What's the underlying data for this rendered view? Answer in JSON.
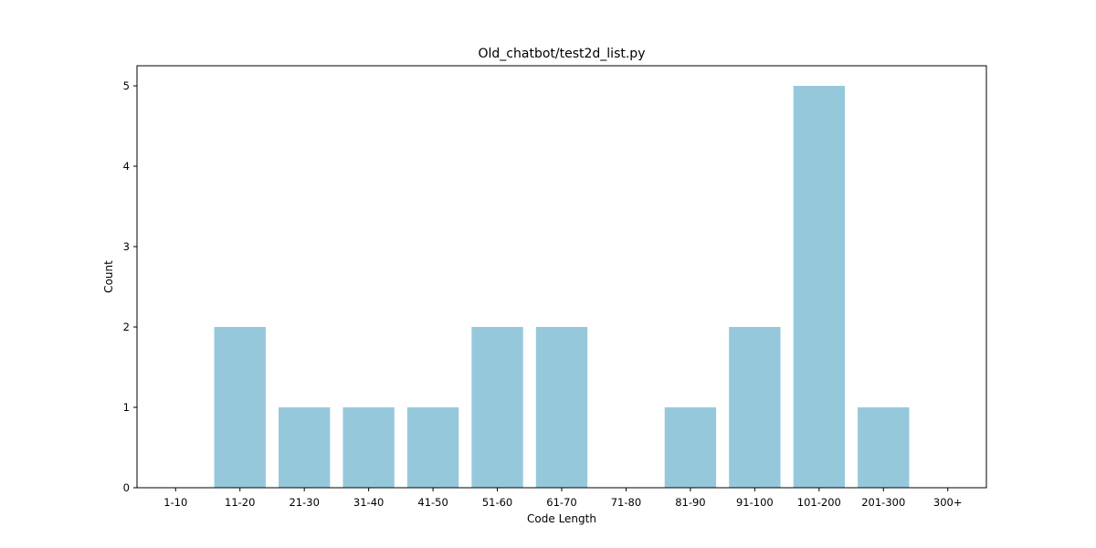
{
  "chart_data": {
    "type": "bar",
    "title": "Old_chatbot/test2d_list.py",
    "xlabel": "Code Length",
    "ylabel": "Count",
    "categories": [
      "1-10",
      "11-20",
      "21-30",
      "31-40",
      "41-50",
      "51-60",
      "61-70",
      "71-80",
      "81-90",
      "91-100",
      "101-200",
      "201-300",
      "300+"
    ],
    "values": [
      0,
      2,
      1,
      1,
      1,
      2,
      2,
      0,
      1,
      2,
      5,
      1,
      0
    ],
    "yticks": [
      "0",
      "1",
      "2",
      "3",
      "4",
      "5"
    ],
    "ylim": [
      0,
      5.25
    ],
    "bar_color": "#96c8dc",
    "grid": false,
    "legend": "none"
  }
}
